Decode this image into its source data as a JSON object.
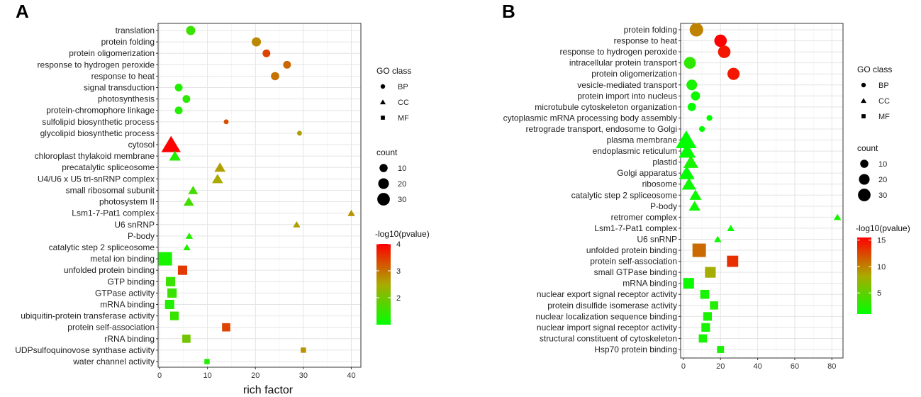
{
  "chart_data": [
    {
      "panel": "A",
      "type": "scatter",
      "xlabel": "rich factor",
      "xlim": [
        -0.3,
        42
      ],
      "xticks": [
        0,
        10,
        20,
        30,
        40
      ],
      "legend": {
        "class_title": "GO class",
        "classes": [
          "BP",
          "CC",
          "MF"
        ],
        "count_title": "count",
        "count_values": [
          10,
          20,
          30
        ],
        "color_title": "-log10(pvalue)",
        "color_ticks": [
          2,
          3,
          4
        ],
        "color_range": [
          1,
          4
        ]
      },
      "terms": [
        {
          "label": "translation",
          "class": "BP",
          "x": 6.5,
          "count": 8,
          "p": 1.5
        },
        {
          "label": "protein folding",
          "class": "BP",
          "x": 20.2,
          "count": 8,
          "p": 2.8
        },
        {
          "label": "protein oligomerization",
          "class": "BP",
          "x": 22.3,
          "count": 5,
          "p": 3.4
        },
        {
          "label": "response to hydrogen peroxide",
          "class": "BP",
          "x": 26.6,
          "count": 5,
          "p": 3.1
        },
        {
          "label": "response to heat",
          "class": "BP",
          "x": 24.1,
          "count": 6,
          "p": 3.0
        },
        {
          "label": "signal transduction",
          "class": "BP",
          "x": 4.0,
          "count": 5,
          "p": 1.3
        },
        {
          "label": "photosynthesis",
          "class": "BP",
          "x": 5.6,
          "count": 5,
          "p": 1.4
        },
        {
          "label": "protein-chromophore linkage",
          "class": "BP",
          "x": 4.0,
          "count": 5,
          "p": 1.3
        },
        {
          "label": "sulfolipid biosynthetic process",
          "class": "BP",
          "x": 13.9,
          "count": 1,
          "p": 3.3
        },
        {
          "label": "glycolipid biosynthetic process",
          "class": "BP",
          "x": 29.2,
          "count": 1,
          "p": 2.6
        },
        {
          "label": "cytosol",
          "class": "CC",
          "x": 2.4,
          "count": 30,
          "p": 4.0
        },
        {
          "label": "chloroplast thylakoid membrane",
          "class": "CC",
          "x": 3.2,
          "count": 8,
          "p": 1.3
        },
        {
          "label": "precatalytic spliceosome",
          "class": "CC",
          "x": 12.6,
          "count": 7,
          "p": 2.6
        },
        {
          "label": "U4/U6 x U5 tri-snRNP complex",
          "class": "CC",
          "x": 12.1,
          "count": 7,
          "p": 2.5
        },
        {
          "label": "small ribosomal subunit",
          "class": "CC",
          "x": 7.0,
          "count": 5,
          "p": 1.6
        },
        {
          "label": "photosystem II",
          "class": "CC",
          "x": 6.1,
          "count": 6,
          "p": 1.6
        },
        {
          "label": "Lsm1-7-Pat1 complex",
          "class": "CC",
          "x": 40.0,
          "count": 2,
          "p": 2.7
        },
        {
          "label": "U6 snRNP",
          "class": "CC",
          "x": 28.6,
          "count": 2,
          "p": 2.6
        },
        {
          "label": "P-body",
          "class": "CC",
          "x": 6.2,
          "count": 2,
          "p": 1.3
        },
        {
          "label": "catalytic step 2 spliceosome",
          "class": "CC",
          "x": 5.7,
          "count": 2,
          "p": 1.3
        },
        {
          "label": "metal ion binding",
          "class": "MF",
          "x": 1.2,
          "count": 28,
          "p": 1.2
        },
        {
          "label": "unfolded protein binding",
          "class": "MF",
          "x": 4.8,
          "count": 11,
          "p": 3.5
        },
        {
          "label": "GTP binding",
          "class": "MF",
          "x": 2.3,
          "count": 11,
          "p": 1.5
        },
        {
          "label": "GTPase activity",
          "class": "MF",
          "x": 2.6,
          "count": 11,
          "p": 1.5
        },
        {
          "label": "mRNA binding",
          "class": "MF",
          "x": 2.1,
          "count": 11,
          "p": 1.3
        },
        {
          "label": "ubiquitin-protein transferase activity",
          "class": "MF",
          "x": 3.1,
          "count": 9,
          "p": 1.5
        },
        {
          "label": "protein self-association",
          "class": "MF",
          "x": 13.9,
          "count": 8,
          "p": 3.4
        },
        {
          "label": "rRNA binding",
          "class": "MF",
          "x": 5.6,
          "count": 8,
          "p": 2.0
        },
        {
          "label": "UDPsulfoquinovose synthase activity",
          "class": "MF",
          "x": 30.0,
          "count": 2,
          "p": 2.7
        },
        {
          "label": "water channel activity",
          "class": "MF",
          "x": 9.9,
          "count": 2,
          "p": 1.3
        }
      ]
    },
    {
      "panel": "B",
      "type": "scatter",
      "xlabel": "",
      "xlim": [
        -1.5,
        86
      ],
      "xticks": [
        0,
        20,
        40,
        60,
        80
      ],
      "legend": {
        "class_title": "GO class",
        "classes": [
          "BP",
          "CC",
          "MF"
        ],
        "count_title": "count",
        "count_values": [
          10,
          20,
          30
        ],
        "color_title": "-log10(pvalue)",
        "color_ticks": [
          5,
          10,
          15
        ],
        "color_range": [
          1,
          15.5
        ]
      },
      "terms": [
        {
          "label": "protein folding",
          "class": "BP",
          "x": 7,
          "count": 22,
          "p": 10
        },
        {
          "label": "response to heat",
          "class": "BP",
          "x": 20,
          "count": 18,
          "p": 15.5
        },
        {
          "label": "response to hydrogen peroxide",
          "class": "BP",
          "x": 22,
          "count": 18,
          "p": 14.5
        },
        {
          "label": "intracellular protein transport",
          "class": "BP",
          "x": 3.5,
          "count": 16,
          "p": 3.0
        },
        {
          "label": "protein oligomerization",
          "class": "BP",
          "x": 27,
          "count": 17,
          "p": 14.5
        },
        {
          "label": "vesicle-mediated transport",
          "class": "BP",
          "x": 4.5,
          "count": 12,
          "p": 2.0
        },
        {
          "label": "protein import into nucleus",
          "class": "BP",
          "x": 6.5,
          "count": 8,
          "p": 1.5
        },
        {
          "label": "microtubule cytoskeleton organization",
          "class": "BP",
          "x": 4.5,
          "count": 6,
          "p": 1.2
        },
        {
          "label": "cytoplasmic mRNA processing body assembly",
          "class": "BP",
          "x": 14,
          "count": 2,
          "p": 1.0
        },
        {
          "label": "retrograde transport, endosome to Golgi",
          "class": "BP",
          "x": 10,
          "count": 2,
          "p": 1.0
        },
        {
          "label": "plasma membrane",
          "class": "CC",
          "x": 1.5,
          "count": 36,
          "p": 1.0
        },
        {
          "label": "endoplasmic reticulum",
          "class": "CC",
          "x": 2.0,
          "count": 22,
          "p": 1.0
        },
        {
          "label": "plastid",
          "class": "CC",
          "x": 4.0,
          "count": 16,
          "p": 2.0
        },
        {
          "label": "Golgi apparatus",
          "class": "CC",
          "x": 1.8,
          "count": 18,
          "p": 1.0
        },
        {
          "label": "ribosome",
          "class": "CC",
          "x": 3.0,
          "count": 14,
          "p": 1.5
        },
        {
          "label": "catalytic step 2 spliceosome",
          "class": "CC",
          "x": 6.5,
          "count": 9,
          "p": 1.5
        },
        {
          "label": "P-body",
          "class": "CC",
          "x": 6.0,
          "count": 8,
          "p": 1.5
        },
        {
          "label": "retromer complex",
          "class": "CC",
          "x": 83,
          "count": 2,
          "p": 2.0
        },
        {
          "label": "Lsm1-7-Pat1 complex",
          "class": "CC",
          "x": 25.5,
          "count": 2,
          "p": 1.5
        },
        {
          "label": "U6 snRNP",
          "class": "CC",
          "x": 18.5,
          "count": 2,
          "p": 1.5
        },
        {
          "label": "unfolded protein binding",
          "class": "MF",
          "x": 8.5,
          "count": 28,
          "p": 11.0
        },
        {
          "label": "protein self-association",
          "class": "MF",
          "x": 26.5,
          "count": 18,
          "p": 13.5
        },
        {
          "label": "small GTPase binding",
          "class": "MF",
          "x": 14.5,
          "count": 16,
          "p": 8.0
        },
        {
          "label": "mRNA binding",
          "class": "MF",
          "x": 2.8,
          "count": 16,
          "p": 1.5
        },
        {
          "label": "nuclear export signal receptor activity",
          "class": "MF",
          "x": 11.5,
          "count": 10,
          "p": 2.0
        },
        {
          "label": "protein disulfide isomerase activity",
          "class": "MF",
          "x": 16.5,
          "count": 8,
          "p": 2.5
        },
        {
          "label": "nuclear localization sequence binding",
          "class": "MF",
          "x": 13,
          "count": 9,
          "p": 2.0
        },
        {
          "label": "nuclear import signal receptor activity",
          "class": "MF",
          "x": 12,
          "count": 9,
          "p": 2.0
        },
        {
          "label": "structural constituent of cytoskeleton",
          "class": "MF",
          "x": 10.5,
          "count": 8,
          "p": 2.0
        },
        {
          "label": "Hsp70 protein binding",
          "class": "MF",
          "x": 20,
          "count": 5,
          "p": 2.0
        }
      ]
    }
  ]
}
